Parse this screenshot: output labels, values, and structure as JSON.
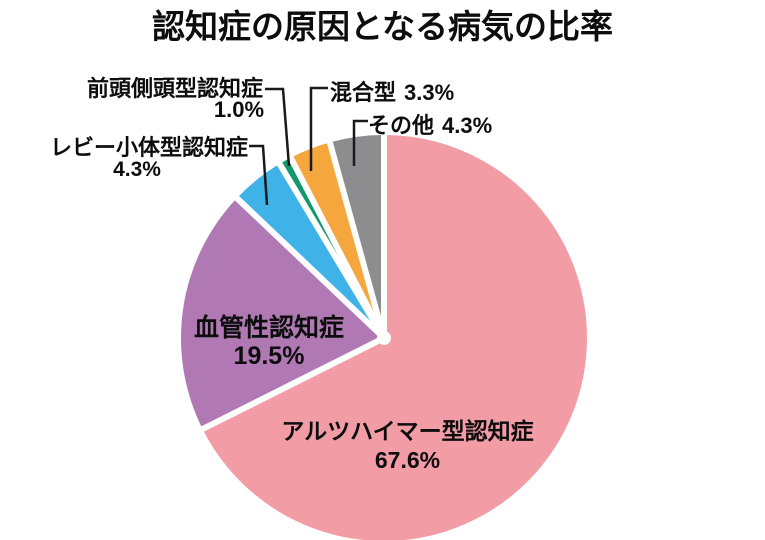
{
  "title": "認知症の原因となる病気の比率",
  "chart_data": {
    "type": "pie",
    "title": "認知症の原因となる病気の比率",
    "start_angle_deg": 0,
    "direction": "clockwise",
    "slices": [
      {
        "key": "alzheimer",
        "label": "アルツハイマー型認知症",
        "value": 67.6,
        "pct_label": "67.6%",
        "color": "#F29CA6",
        "label_placement": "inside"
      },
      {
        "key": "vascular",
        "label": "血管性認知症",
        "value": 19.5,
        "pct_label": "19.5%",
        "color": "#B179B3",
        "label_placement": "inside"
      },
      {
        "key": "lewy-body",
        "label": "レビー小体型認知症",
        "value": 4.3,
        "pct_label": "4.3%",
        "color": "#3FB2E7",
        "label_placement": "outside-left"
      },
      {
        "key": "frontotemporal",
        "label": "前頭側頭型認知症",
        "value": 1.0,
        "pct_label": "1.0%",
        "color": "#12996B",
        "label_placement": "outside-left"
      },
      {
        "key": "mixed",
        "label": "混合型",
        "value": 3.3,
        "pct_label": "3.3%",
        "color": "#F5A73E",
        "label_placement": "outside-top"
      },
      {
        "key": "others",
        "label": "その他",
        "value": 4.3,
        "pct_label": "4.3%",
        "color": "#8D8D8F",
        "label_placement": "outside-top"
      }
    ],
    "separator_color": "#FFFFFF",
    "leader_line_color": "#1A1A1A",
    "background_color": "#FFFFFF",
    "legend": "none",
    "labels_on_chart": true
  }
}
